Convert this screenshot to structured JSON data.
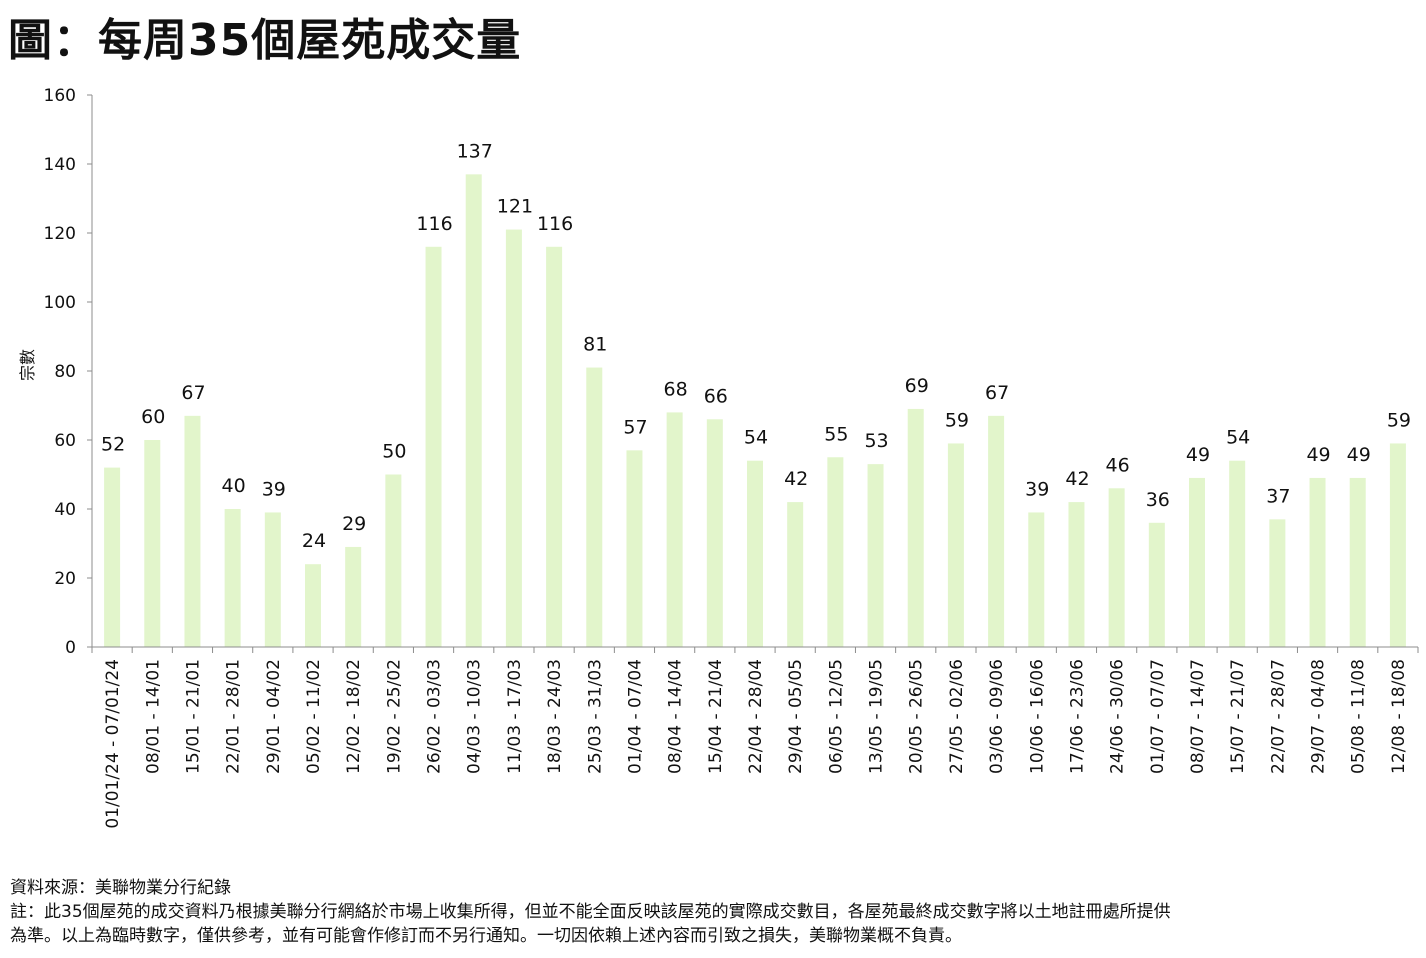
{
  "title": "圖：每周35個屋苑成交量",
  "chart_data": {
    "type": "bar",
    "title": "圖：每周35個屋苑成交量",
    "ylabel": "宗數",
    "xlabel": "",
    "ylim": [
      0,
      160
    ],
    "yticks": [
      0,
      20,
      40,
      60,
      80,
      100,
      120,
      140,
      160
    ],
    "grid": false,
    "legend": "none",
    "bar_color": "#e2f5cb",
    "categories": [
      "01/01/24 - 07/01/24",
      "08/01 - 14/01",
      "15/01 - 21/01",
      "22/01 - 28/01",
      "29/01 - 04/02",
      "05/02 - 11/02",
      "12/02 - 18/02",
      "19/02 - 25/02",
      "26/02 - 03/03",
      "04/03 - 10/03",
      "11/03 - 17/03",
      "18/03 - 24/03",
      "25/03 - 31/03",
      "01/04 - 07/04",
      "08/04 - 14/04",
      "15/04 - 21/04",
      "22/04 - 28/04",
      "29/04 - 05/05",
      "06/05 - 12/05",
      "13/05 - 19/05",
      "20/05 - 26/05",
      "27/05 - 02/06",
      "03/06 - 09/06",
      "10/06 - 16/06",
      "17/06 - 23/06",
      "24/06 - 30/06",
      "01/07 - 07/07",
      "08/07 - 14/07",
      "15/07 - 21/07",
      "22/07 - 28/07",
      "29/07 - 04/08",
      "05/08 - 11/08",
      "12/08 - 18/08"
    ],
    "values": [
      52,
      60,
      67,
      40,
      39,
      24,
      29,
      50,
      116,
      137,
      121,
      116,
      81,
      57,
      68,
      66,
      54,
      42,
      55,
      53,
      69,
      59,
      67,
      39,
      42,
      46,
      36,
      49,
      54,
      37,
      49,
      49,
      59
    ]
  },
  "notes": {
    "source": "資料來源：美聯物業分行紀錄",
    "note_line1": "註：此35個屋苑的成交資料乃根據美聯分行網絡於市場上收集所得，但並不能全面反映該屋苑的實際成交數目，各屋苑最終成交數字將以土地註冊處所提供",
    "note_line2": "為準。以上為臨時數字，僅供參考，並有可能會作修訂而不另行通知。一切因依賴上述內容而引致之損失，美聯物業概不負責。"
  }
}
